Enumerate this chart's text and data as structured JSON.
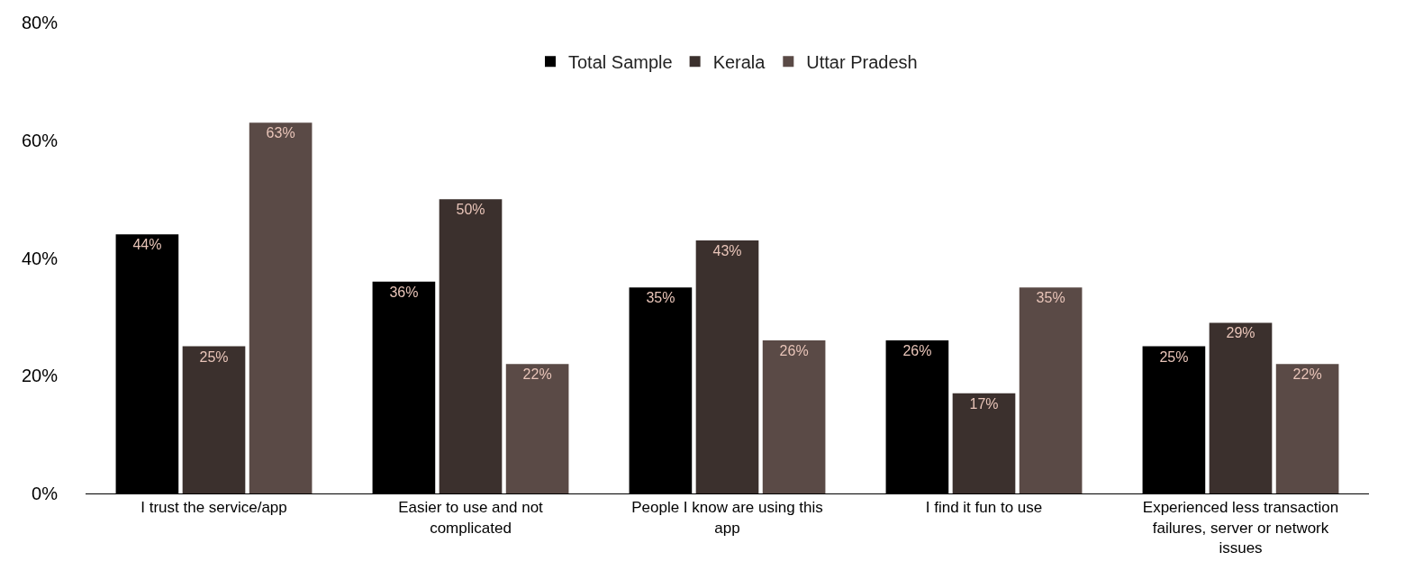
{
  "chart_data": {
    "type": "bar",
    "categories": [
      "I trust the service/app",
      "Easier to use and not complicated",
      "People I know are using this app",
      "I find it fun to use",
      "Experienced less transaction failures, server or network issues"
    ],
    "series": [
      {
        "name": "Total Sample",
        "color": "#000000",
        "values": [
          44,
          36,
          35,
          26,
          25
        ],
        "value_labels": [
          "44%",
          "36%",
          "35%",
          "26%",
          "25%"
        ]
      },
      {
        "name": "Kerala",
        "color": "#3b302d",
        "values": [
          25,
          50,
          43,
          17,
          29
        ],
        "value_labels": [
          "25%",
          "50%",
          "43%",
          "17%",
          "29%"
        ]
      },
      {
        "name": "Uttar Pradesh",
        "color": "#5a4a46",
        "values": [
          63,
          22,
          26,
          35,
          22
        ],
        "value_labels": [
          "63%",
          "22%",
          "26%",
          "35%",
          "22%"
        ]
      }
    ],
    "ylim": [
      0,
      80
    ],
    "yticks": [
      {
        "value": 0,
        "label": "0%"
      },
      {
        "value": 20,
        "label": "20%"
      },
      {
        "value": 40,
        "label": "40%"
      },
      {
        "value": 60,
        "label": "60%"
      },
      {
        "value": 80,
        "label": "80%"
      }
    ],
    "legend": "top"
  }
}
